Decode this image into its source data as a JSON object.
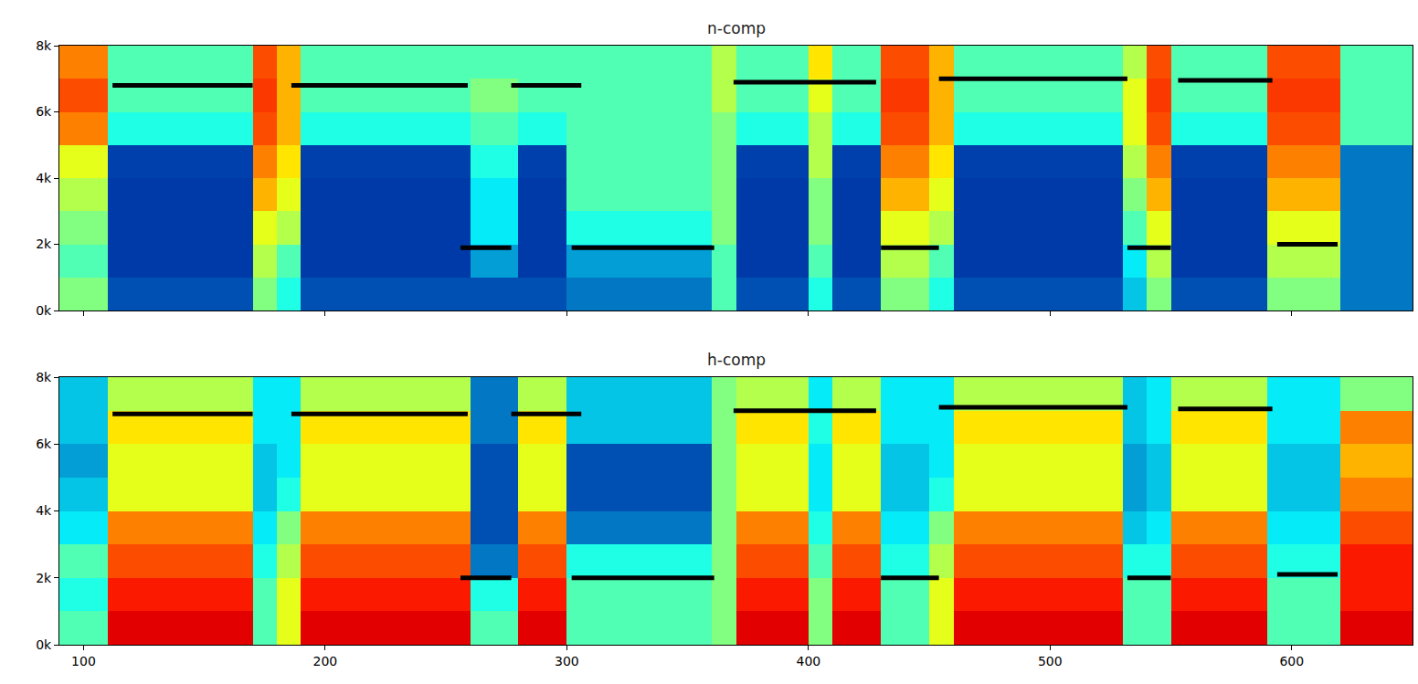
{
  "chart_data": [
    {
      "type": "heatmap",
      "title": "n-comp",
      "color": "Jet",
      "zlim": [
        0,
        1
      ],
      "tick_labels": "y",
      "xlim": [
        90,
        650
      ],
      "ylim": [
        0,
        8000
      ],
      "xticks": [
        100,
        200,
        300,
        400,
        500,
        600
      ],
      "yticks": [
        {
          "value": 0,
          "label": "0k"
        },
        {
          "value": 2000,
          "label": "2k"
        },
        {
          "value": 4000,
          "label": "4k"
        },
        {
          "value": 6000,
          "label": "6k"
        },
        {
          "value": 8000,
          "label": "8k"
        }
      ],
      "x": [
        95,
        105,
        115,
        125,
        135,
        145,
        155,
        165,
        175,
        185,
        195,
        205,
        215,
        225,
        235,
        245,
        255,
        265,
        275,
        285,
        295,
        305,
        315,
        325,
        335,
        345,
        355,
        365,
        375,
        385,
        395,
        405,
        415,
        425,
        435,
        445,
        455,
        465,
        475,
        485,
        495,
        505,
        515,
        525,
        535,
        545,
        555,
        565,
        575,
        585,
        595,
        605,
        615,
        625,
        635,
        645
      ],
      "y": [
        500,
        1500,
        2500,
        3500,
        4500,
        5500,
        6500,
        7500
      ],
      "z": [
        [
          0.5,
          0.5,
          0.15,
          0.15,
          0.15,
          0.15,
          0.15,
          0.15,
          0.5,
          0.4,
          0.15,
          0.15,
          0.15,
          0.15,
          0.15,
          0.15,
          0.15,
          0.15,
          0.15,
          0.15,
          0.15,
          0.2,
          0.2,
          0.2,
          0.2,
          0.2,
          0.2,
          0.45,
          0.15,
          0.15,
          0.15,
          0.4,
          0.15,
          0.15,
          0.5,
          0.5,
          0.4,
          0.15,
          0.15,
          0.15,
          0.15,
          0.15,
          0.15,
          0.15,
          0.3,
          0.5,
          0.15,
          0.15,
          0.15,
          0.15,
          0.5,
          0.5,
          0.5,
          0.2,
          0.2,
          0.2
        ],
        [
          0.45,
          0.45,
          0.12,
          0.12,
          0.12,
          0.12,
          0.12,
          0.12,
          0.55,
          0.45,
          0.12,
          0.12,
          0.12,
          0.12,
          0.12,
          0.12,
          0.12,
          0.25,
          0.25,
          0.12,
          0.12,
          0.25,
          0.25,
          0.25,
          0.25,
          0.25,
          0.25,
          0.45,
          0.12,
          0.12,
          0.12,
          0.45,
          0.12,
          0.12,
          0.55,
          0.55,
          0.45,
          0.12,
          0.12,
          0.12,
          0.12,
          0.12,
          0.12,
          0.12,
          0.35,
          0.55,
          0.12,
          0.12,
          0.12,
          0.12,
          0.55,
          0.55,
          0.55,
          0.2,
          0.2,
          0.2
        ],
        [
          0.5,
          0.5,
          0.12,
          0.12,
          0.12,
          0.12,
          0.12,
          0.12,
          0.6,
          0.55,
          0.12,
          0.12,
          0.12,
          0.12,
          0.12,
          0.12,
          0.12,
          0.35,
          0.35,
          0.12,
          0.12,
          0.4,
          0.4,
          0.4,
          0.4,
          0.4,
          0.4,
          0.5,
          0.12,
          0.12,
          0.12,
          0.5,
          0.12,
          0.12,
          0.6,
          0.6,
          0.55,
          0.12,
          0.12,
          0.12,
          0.12,
          0.12,
          0.12,
          0.12,
          0.45,
          0.6,
          0.12,
          0.12,
          0.12,
          0.12,
          0.6,
          0.6,
          0.6,
          0.2,
          0.2,
          0.2
        ],
        [
          0.55,
          0.55,
          0.12,
          0.12,
          0.12,
          0.12,
          0.12,
          0.12,
          0.7,
          0.6,
          0.12,
          0.12,
          0.12,
          0.12,
          0.12,
          0.12,
          0.12,
          0.35,
          0.35,
          0.12,
          0.12,
          0.45,
          0.45,
          0.45,
          0.45,
          0.45,
          0.45,
          0.5,
          0.12,
          0.12,
          0.12,
          0.5,
          0.12,
          0.12,
          0.7,
          0.7,
          0.6,
          0.12,
          0.12,
          0.12,
          0.12,
          0.12,
          0.12,
          0.12,
          0.5,
          0.7,
          0.12,
          0.12,
          0.12,
          0.12,
          0.7,
          0.7,
          0.7,
          0.2,
          0.2,
          0.2
        ],
        [
          0.6,
          0.6,
          0.13,
          0.13,
          0.13,
          0.13,
          0.13,
          0.13,
          0.75,
          0.65,
          0.13,
          0.13,
          0.13,
          0.13,
          0.13,
          0.13,
          0.13,
          0.4,
          0.4,
          0.13,
          0.13,
          0.45,
          0.45,
          0.45,
          0.45,
          0.45,
          0.45,
          0.5,
          0.13,
          0.13,
          0.13,
          0.55,
          0.13,
          0.13,
          0.75,
          0.75,
          0.65,
          0.13,
          0.13,
          0.13,
          0.13,
          0.13,
          0.13,
          0.13,
          0.55,
          0.75,
          0.13,
          0.13,
          0.13,
          0.13,
          0.75,
          0.75,
          0.75,
          0.2,
          0.2,
          0.2
        ],
        [
          0.75,
          0.75,
          0.4,
          0.4,
          0.4,
          0.4,
          0.4,
          0.4,
          0.8,
          0.7,
          0.4,
          0.4,
          0.4,
          0.4,
          0.4,
          0.4,
          0.4,
          0.45,
          0.45,
          0.4,
          0.4,
          0.45,
          0.45,
          0.45,
          0.45,
          0.45,
          0.45,
          0.5,
          0.4,
          0.4,
          0.4,
          0.55,
          0.4,
          0.4,
          0.8,
          0.8,
          0.7,
          0.4,
          0.4,
          0.4,
          0.4,
          0.4,
          0.4,
          0.4,
          0.6,
          0.8,
          0.4,
          0.4,
          0.4,
          0.4,
          0.8,
          0.8,
          0.8,
          0.45,
          0.45,
          0.45
        ],
        [
          0.8,
          0.8,
          0.45,
          0.45,
          0.45,
          0.45,
          0.45,
          0.45,
          0.82,
          0.7,
          0.45,
          0.45,
          0.45,
          0.45,
          0.45,
          0.45,
          0.45,
          0.5,
          0.5,
          0.45,
          0.45,
          0.45,
          0.45,
          0.45,
          0.45,
          0.45,
          0.45,
          0.55,
          0.45,
          0.45,
          0.45,
          0.6,
          0.45,
          0.45,
          0.82,
          0.82,
          0.7,
          0.45,
          0.45,
          0.45,
          0.45,
          0.45,
          0.45,
          0.45,
          0.6,
          0.82,
          0.45,
          0.45,
          0.45,
          0.45,
          0.82,
          0.82,
          0.82,
          0.45,
          0.45,
          0.45
        ],
        [
          0.75,
          0.75,
          0.45,
          0.45,
          0.45,
          0.45,
          0.45,
          0.45,
          0.8,
          0.7,
          0.45,
          0.45,
          0.45,
          0.45,
          0.45,
          0.45,
          0.45,
          0.45,
          0.45,
          0.45,
          0.45,
          0.45,
          0.45,
          0.45,
          0.45,
          0.45,
          0.45,
          0.55,
          0.45,
          0.45,
          0.45,
          0.65,
          0.45,
          0.45,
          0.8,
          0.8,
          0.7,
          0.45,
          0.45,
          0.45,
          0.45,
          0.45,
          0.45,
          0.45,
          0.55,
          0.8,
          0.45,
          0.45,
          0.45,
          0.45,
          0.8,
          0.8,
          0.8,
          0.45,
          0.45,
          0.45
        ]
      ],
      "segments": [
        {
          "x": [
            112,
            170
          ],
          "y": 6800
        },
        {
          "x": [
            186,
            259
          ],
          "y": 6800
        },
        {
          "x": [
            256,
            277
          ],
          "y": 1900
        },
        {
          "x": [
            277,
            306
          ],
          "y": 6800
        },
        {
          "x": [
            302,
            361
          ],
          "y": 1900
        },
        {
          "x": [
            369,
            428
          ],
          "y": 6900
        },
        {
          "x": [
            430,
            454
          ],
          "y": 1900
        },
        {
          "x": [
            454,
            532
          ],
          "y": 7000
        },
        {
          "x": [
            532,
            550
          ],
          "y": 1900
        },
        {
          "x": [
            553,
            592
          ],
          "y": 6950
        },
        {
          "x": [
            594,
            619
          ],
          "y": 2000
        }
      ]
    },
    {
      "type": "heatmap",
      "title": "h-comp",
      "color": "Jet",
      "zlim": [
        0,
        1
      ],
      "xlim": [
        90,
        650
      ],
      "ylim": [
        0,
        8000
      ],
      "xticks": [
        100,
        200,
        300,
        400,
        500,
        600
      ],
      "yticks": [
        {
          "value": 0,
          "label": "0k"
        },
        {
          "value": 2000,
          "label": "2k"
        },
        {
          "value": 4000,
          "label": "4k"
        },
        {
          "value": 6000,
          "label": "6k"
        },
        {
          "value": 8000,
          "label": "8k"
        }
      ],
      "x": [
        95,
        105,
        115,
        125,
        135,
        145,
        155,
        165,
        175,
        185,
        195,
        205,
        215,
        225,
        235,
        245,
        255,
        265,
        275,
        285,
        295,
        305,
        315,
        325,
        335,
        345,
        355,
        365,
        375,
        385,
        395,
        405,
        415,
        425,
        435,
        445,
        455,
        465,
        475,
        485,
        495,
        505,
        515,
        525,
        535,
        545,
        555,
        565,
        575,
        585,
        595,
        605,
        615,
        625,
        635,
        645
      ],
      "y": [
        500,
        1500,
        2500,
        3500,
        4500,
        5500,
        6500,
        7500
      ],
      "z": [
        [
          0.45,
          0.45,
          0.9,
          0.9,
          0.9,
          0.9,
          0.9,
          0.9,
          0.45,
          0.6,
          0.9,
          0.9,
          0.9,
          0.9,
          0.9,
          0.9,
          0.9,
          0.45,
          0.45,
          0.9,
          0.9,
          0.45,
          0.45,
          0.45,
          0.45,
          0.45,
          0.45,
          0.5,
          0.9,
          0.9,
          0.9,
          0.5,
          0.9,
          0.9,
          0.45,
          0.45,
          0.6,
          0.9,
          0.9,
          0.9,
          0.9,
          0.9,
          0.9,
          0.9,
          0.45,
          0.45,
          0.9,
          0.9,
          0.9,
          0.9,
          0.45,
          0.45,
          0.45,
          0.9,
          0.9,
          0.9
        ],
        [
          0.4,
          0.4,
          0.85,
          0.85,
          0.85,
          0.85,
          0.85,
          0.85,
          0.45,
          0.6,
          0.85,
          0.85,
          0.85,
          0.85,
          0.85,
          0.85,
          0.85,
          0.4,
          0.4,
          0.85,
          0.85,
          0.45,
          0.45,
          0.45,
          0.45,
          0.45,
          0.45,
          0.5,
          0.85,
          0.85,
          0.85,
          0.5,
          0.85,
          0.85,
          0.45,
          0.45,
          0.6,
          0.85,
          0.85,
          0.85,
          0.85,
          0.85,
          0.85,
          0.85,
          0.45,
          0.45,
          0.85,
          0.85,
          0.85,
          0.85,
          0.45,
          0.45,
          0.45,
          0.85,
          0.85,
          0.85
        ],
        [
          0.45,
          0.45,
          0.8,
          0.8,
          0.8,
          0.8,
          0.8,
          0.8,
          0.4,
          0.55,
          0.8,
          0.8,
          0.8,
          0.8,
          0.8,
          0.8,
          0.8,
          0.2,
          0.2,
          0.8,
          0.8,
          0.4,
          0.4,
          0.4,
          0.4,
          0.4,
          0.4,
          0.5,
          0.8,
          0.8,
          0.8,
          0.45,
          0.8,
          0.8,
          0.4,
          0.4,
          0.55,
          0.8,
          0.8,
          0.8,
          0.8,
          0.8,
          0.8,
          0.8,
          0.4,
          0.4,
          0.8,
          0.8,
          0.8,
          0.8,
          0.4,
          0.4,
          0.4,
          0.85,
          0.85,
          0.85
        ],
        [
          0.35,
          0.35,
          0.75,
          0.75,
          0.75,
          0.75,
          0.75,
          0.75,
          0.35,
          0.5,
          0.75,
          0.75,
          0.75,
          0.75,
          0.75,
          0.75,
          0.75,
          0.15,
          0.15,
          0.75,
          0.75,
          0.2,
          0.2,
          0.2,
          0.2,
          0.2,
          0.2,
          0.5,
          0.75,
          0.75,
          0.75,
          0.4,
          0.75,
          0.75,
          0.35,
          0.35,
          0.5,
          0.75,
          0.75,
          0.75,
          0.75,
          0.75,
          0.75,
          0.75,
          0.3,
          0.35,
          0.75,
          0.75,
          0.75,
          0.75,
          0.35,
          0.35,
          0.35,
          0.8,
          0.8,
          0.8
        ],
        [
          0.3,
          0.3,
          0.6,
          0.6,
          0.6,
          0.6,
          0.6,
          0.6,
          0.3,
          0.4,
          0.6,
          0.6,
          0.6,
          0.6,
          0.6,
          0.6,
          0.6,
          0.15,
          0.15,
          0.6,
          0.6,
          0.15,
          0.15,
          0.15,
          0.15,
          0.15,
          0.15,
          0.5,
          0.6,
          0.6,
          0.6,
          0.35,
          0.6,
          0.6,
          0.3,
          0.3,
          0.4,
          0.6,
          0.6,
          0.6,
          0.6,
          0.6,
          0.6,
          0.6,
          0.25,
          0.3,
          0.6,
          0.6,
          0.6,
          0.6,
          0.3,
          0.3,
          0.3,
          0.75,
          0.75,
          0.75
        ],
        [
          0.25,
          0.25,
          0.6,
          0.6,
          0.6,
          0.6,
          0.6,
          0.6,
          0.3,
          0.35,
          0.6,
          0.6,
          0.6,
          0.6,
          0.6,
          0.6,
          0.6,
          0.15,
          0.15,
          0.6,
          0.6,
          0.15,
          0.15,
          0.15,
          0.15,
          0.15,
          0.15,
          0.5,
          0.6,
          0.6,
          0.6,
          0.35,
          0.6,
          0.6,
          0.3,
          0.3,
          0.35,
          0.6,
          0.6,
          0.6,
          0.6,
          0.6,
          0.6,
          0.6,
          0.25,
          0.3,
          0.6,
          0.6,
          0.6,
          0.6,
          0.3,
          0.3,
          0.3,
          0.7,
          0.7,
          0.7
        ],
        [
          0.3,
          0.3,
          0.65,
          0.65,
          0.65,
          0.65,
          0.65,
          0.65,
          0.35,
          0.35,
          0.65,
          0.65,
          0.65,
          0.65,
          0.65,
          0.65,
          0.65,
          0.2,
          0.2,
          0.65,
          0.65,
          0.3,
          0.3,
          0.3,
          0.3,
          0.3,
          0.3,
          0.5,
          0.65,
          0.65,
          0.65,
          0.4,
          0.65,
          0.65,
          0.35,
          0.35,
          0.35,
          0.65,
          0.65,
          0.65,
          0.65,
          0.65,
          0.65,
          0.65,
          0.3,
          0.35,
          0.65,
          0.65,
          0.65,
          0.65,
          0.35,
          0.35,
          0.35,
          0.75,
          0.75,
          0.75
        ],
        [
          0.3,
          0.3,
          0.55,
          0.55,
          0.55,
          0.55,
          0.55,
          0.55,
          0.35,
          0.35,
          0.55,
          0.55,
          0.55,
          0.55,
          0.55,
          0.55,
          0.55,
          0.2,
          0.2,
          0.55,
          0.55,
          0.3,
          0.3,
          0.3,
          0.3,
          0.3,
          0.3,
          0.5,
          0.55,
          0.55,
          0.55,
          0.35,
          0.55,
          0.55,
          0.35,
          0.35,
          0.35,
          0.55,
          0.55,
          0.55,
          0.55,
          0.55,
          0.55,
          0.55,
          0.3,
          0.35,
          0.55,
          0.55,
          0.55,
          0.55,
          0.35,
          0.35,
          0.35,
          0.5,
          0.5,
          0.5
        ]
      ],
      "segments": [
        {
          "x": [
            112,
            170
          ],
          "y": 6900
        },
        {
          "x": [
            186,
            259
          ],
          "y": 6900
        },
        {
          "x": [
            256,
            277
          ],
          "y": 2000
        },
        {
          "x": [
            277,
            306
          ],
          "y": 6900
        },
        {
          "x": [
            302,
            361
          ],
          "y": 2000
        },
        {
          "x": [
            369,
            428
          ],
          "y": 7000
        },
        {
          "x": [
            430,
            454
          ],
          "y": 2000
        },
        {
          "x": [
            454,
            532
          ],
          "y": 7100
        },
        {
          "x": [
            532,
            550
          ],
          "y": 2000
        },
        {
          "x": [
            553,
            592
          ],
          "y": 7050
        },
        {
          "x": [
            594,
            619
          ],
          "y": 2100
        }
      ]
    }
  ]
}
